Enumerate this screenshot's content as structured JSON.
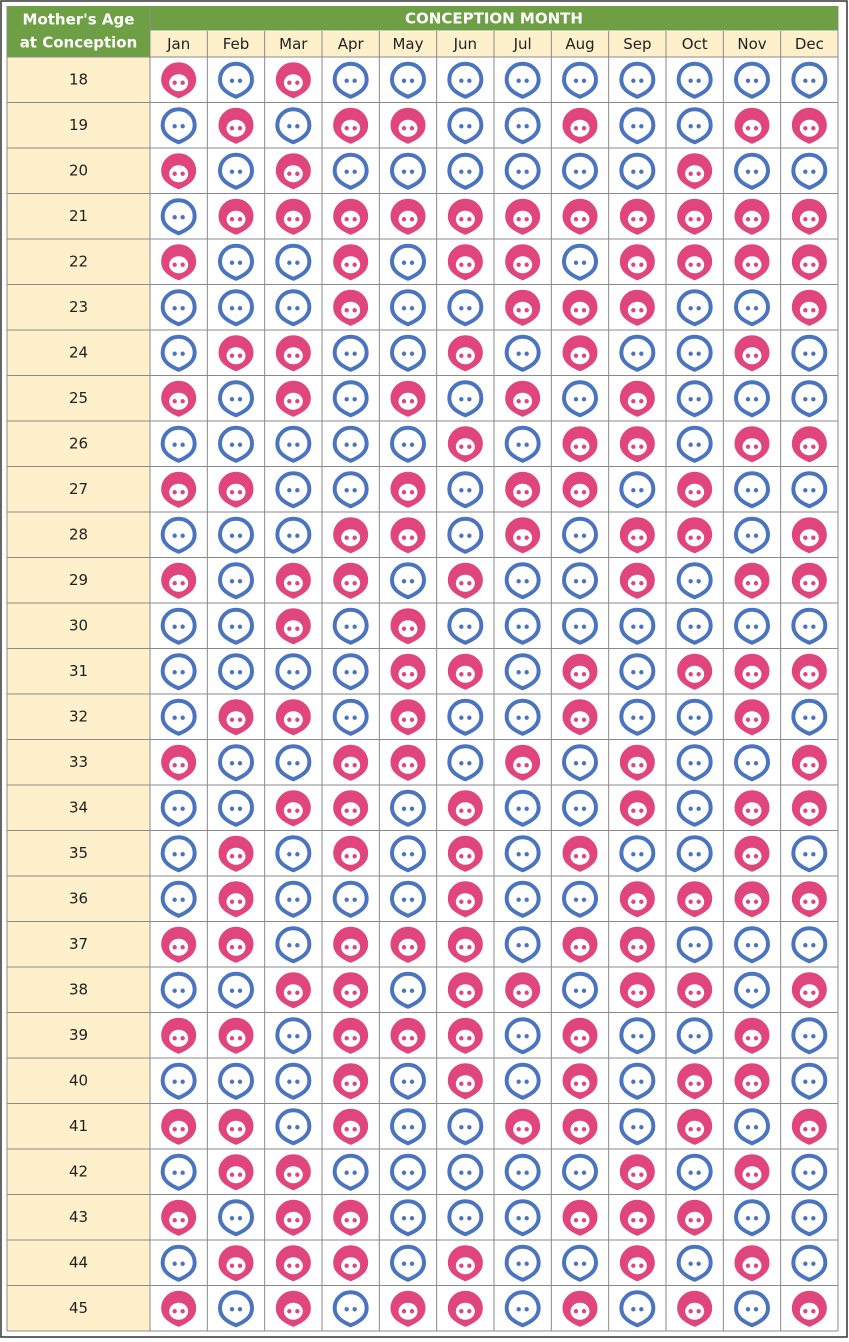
{
  "header": {
    "age_label": [
      "Mother's Age",
      "at Conception"
    ],
    "month_label": "CONCEPTION MONTH"
  },
  "months": [
    "Jan",
    "Feb",
    "Mar",
    "Apr",
    "May",
    "Jun",
    "Jul",
    "Aug",
    "Sep",
    "Oct",
    "Nov",
    "Dec"
  ],
  "rows": [
    {
      "age": 18,
      "cells": [
        "girl",
        "boy",
        "girl",
        "boy",
        "boy",
        "boy",
        "boy",
        "boy",
        "boy",
        "boy",
        "boy",
        "boy"
      ]
    },
    {
      "age": 19,
      "cells": [
        "boy",
        "girl",
        "boy",
        "girl",
        "girl",
        "boy",
        "boy",
        "girl",
        "boy",
        "boy",
        "girl",
        "girl"
      ]
    },
    {
      "age": 20,
      "cells": [
        "girl",
        "boy",
        "girl",
        "boy",
        "boy",
        "boy",
        "boy",
        "boy",
        "boy",
        "girl",
        "boy",
        "boy"
      ]
    },
    {
      "age": 21,
      "cells": [
        "boy",
        "girl",
        "girl",
        "girl",
        "girl",
        "girl",
        "girl",
        "girl",
        "girl",
        "girl",
        "girl",
        "girl"
      ]
    },
    {
      "age": 22,
      "cells": [
        "girl",
        "boy",
        "boy",
        "girl",
        "boy",
        "girl",
        "girl",
        "boy",
        "girl",
        "girl",
        "girl",
        "girl"
      ]
    },
    {
      "age": 23,
      "cells": [
        "boy",
        "boy",
        "boy",
        "girl",
        "boy",
        "boy",
        "girl",
        "girl",
        "girl",
        "boy",
        "boy",
        "girl"
      ]
    },
    {
      "age": 24,
      "cells": [
        "boy",
        "girl",
        "girl",
        "boy",
        "boy",
        "girl",
        "boy",
        "girl",
        "boy",
        "boy",
        "girl",
        "boy"
      ]
    },
    {
      "age": 25,
      "cells": [
        "girl",
        "boy",
        "girl",
        "boy",
        "girl",
        "boy",
        "girl",
        "boy",
        "girl",
        "boy",
        "boy",
        "boy"
      ]
    },
    {
      "age": 26,
      "cells": [
        "boy",
        "boy",
        "boy",
        "boy",
        "boy",
        "girl",
        "boy",
        "girl",
        "girl",
        "boy",
        "girl",
        "girl"
      ]
    },
    {
      "age": 27,
      "cells": [
        "girl",
        "girl",
        "boy",
        "boy",
        "girl",
        "boy",
        "girl",
        "girl",
        "boy",
        "girl",
        "boy",
        "boy"
      ]
    },
    {
      "age": 28,
      "cells": [
        "boy",
        "boy",
        "boy",
        "girl",
        "girl",
        "boy",
        "girl",
        "boy",
        "girl",
        "girl",
        "boy",
        "girl"
      ]
    },
    {
      "age": 29,
      "cells": [
        "girl",
        "boy",
        "girl",
        "girl",
        "boy",
        "girl",
        "boy",
        "boy",
        "girl",
        "boy",
        "girl",
        "girl"
      ]
    },
    {
      "age": 30,
      "cells": [
        "boy",
        "boy",
        "girl",
        "boy",
        "girl",
        "boy",
        "boy",
        "boy",
        "boy",
        "boy",
        "boy",
        "boy"
      ]
    },
    {
      "age": 31,
      "cells": [
        "boy",
        "boy",
        "boy",
        "boy",
        "girl",
        "girl",
        "boy",
        "girl",
        "boy",
        "girl",
        "girl",
        "girl"
      ]
    },
    {
      "age": 32,
      "cells": [
        "boy",
        "girl",
        "girl",
        "boy",
        "girl",
        "boy",
        "boy",
        "girl",
        "boy",
        "boy",
        "girl",
        "boy"
      ]
    },
    {
      "age": 33,
      "cells": [
        "girl",
        "boy",
        "boy",
        "girl",
        "girl",
        "boy",
        "girl",
        "boy",
        "girl",
        "boy",
        "boy",
        "girl"
      ]
    },
    {
      "age": 34,
      "cells": [
        "boy",
        "boy",
        "girl",
        "girl",
        "boy",
        "girl",
        "boy",
        "boy",
        "girl",
        "boy",
        "girl",
        "girl"
      ]
    },
    {
      "age": 35,
      "cells": [
        "boy",
        "girl",
        "boy",
        "girl",
        "boy",
        "girl",
        "boy",
        "girl",
        "boy",
        "boy",
        "girl",
        "boy"
      ]
    },
    {
      "age": 36,
      "cells": [
        "boy",
        "girl",
        "boy",
        "boy",
        "boy",
        "girl",
        "boy",
        "boy",
        "girl",
        "girl",
        "girl",
        "girl"
      ]
    },
    {
      "age": 37,
      "cells": [
        "girl",
        "girl",
        "boy",
        "girl",
        "girl",
        "girl",
        "boy",
        "girl",
        "girl",
        "boy",
        "boy",
        "boy"
      ]
    },
    {
      "age": 38,
      "cells": [
        "boy",
        "boy",
        "girl",
        "girl",
        "boy",
        "girl",
        "girl",
        "boy",
        "girl",
        "girl",
        "boy",
        "girl"
      ]
    },
    {
      "age": 39,
      "cells": [
        "girl",
        "girl",
        "boy",
        "girl",
        "girl",
        "girl",
        "boy",
        "girl",
        "boy",
        "boy",
        "girl",
        "boy"
      ]
    },
    {
      "age": 40,
      "cells": [
        "boy",
        "boy",
        "boy",
        "girl",
        "boy",
        "girl",
        "boy",
        "girl",
        "boy",
        "girl",
        "girl",
        "boy"
      ]
    },
    {
      "age": 41,
      "cells": [
        "girl",
        "girl",
        "boy",
        "girl",
        "boy",
        "boy",
        "girl",
        "girl",
        "boy",
        "girl",
        "boy",
        "girl"
      ]
    },
    {
      "age": 42,
      "cells": [
        "boy",
        "girl",
        "girl",
        "boy",
        "boy",
        "boy",
        "boy",
        "boy",
        "girl",
        "boy",
        "girl",
        "boy"
      ]
    },
    {
      "age": 43,
      "cells": [
        "girl",
        "boy",
        "girl",
        "girl",
        "boy",
        "boy",
        "boy",
        "girl",
        "girl",
        "girl",
        "boy",
        "boy"
      ]
    },
    {
      "age": 44,
      "cells": [
        "boy",
        "girl",
        "girl",
        "girl",
        "boy",
        "girl",
        "boy",
        "boy",
        "girl",
        "boy",
        "girl",
        "boy"
      ]
    },
    {
      "age": 45,
      "cells": [
        "girl",
        "boy",
        "girl",
        "boy",
        "girl",
        "girl",
        "boy",
        "girl",
        "boy",
        "girl",
        "boy",
        "girl"
      ]
    }
  ]
}
